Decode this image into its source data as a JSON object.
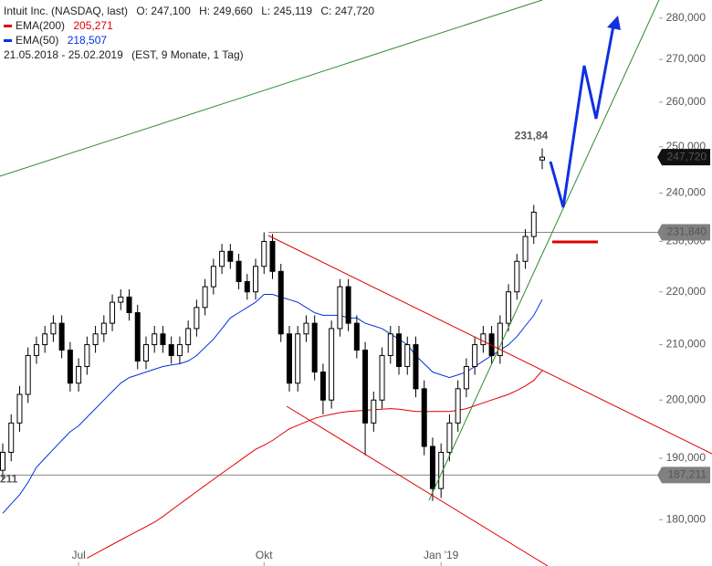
{
  "chart_data": {
    "type": "candlestick",
    "title": "Intuit Inc. (NASDAQ, last)",
    "ohlc_text": [
      "O: 247,100",
      "H: 249,660",
      "L: 245,119",
      "C: 247,720"
    ],
    "subtitle": "21.05.2018 - 25.02.2019",
    "period_note": "(EST, 9 Monate, 1 Tag)",
    "log_scale": true,
    "categories": [
      null,
      null,
      null,
      null,
      null,
      null,
      null,
      null,
      null,
      "Jul",
      null,
      null,
      null,
      null,
      null,
      null,
      null,
      null,
      null,
      null,
      null,
      null,
      null,
      null,
      null,
      null,
      null,
      null,
      null,
      null,
      null,
      "Okt",
      null,
      null,
      null,
      null,
      null,
      null,
      null,
      null,
      null,
      null,
      null,
      null,
      null,
      null,
      null,
      null,
      null,
      null,
      null,
      null,
      "Jan '19",
      null,
      null,
      null,
      null,
      null,
      null,
      null,
      null,
      null,
      null,
      null,
      null
    ],
    "open": [
      188000,
      191000,
      196000,
      201000,
      208000,
      210000,
      212000,
      214000,
      209000,
      203000,
      206000,
      210000,
      212000,
      214000,
      218000,
      219000,
      216000,
      207000,
      210000,
      212000,
      210000,
      208000,
      210000,
      213000,
      217000,
      221000,
      225000,
      228000,
      226000,
      222000,
      220000,
      225000,
      230000,
      224000,
      212000,
      203000,
      212000,
      214000,
      205000,
      200000,
      213000,
      221000,
      214000,
      209000,
      196000,
      200000,
      208000,
      212000,
      206000,
      210000,
      202000,
      192000,
      185000,
      191000,
      196000,
      202000,
      206000,
      210000,
      212000,
      208000,
      214000,
      220000,
      226000,
      231000,
      247100
    ],
    "high": [
      192500,
      197500,
      202500,
      209500,
      211500,
      213500,
      215500,
      215500,
      210500,
      207500,
      211500,
      213500,
      215500,
      219500,
      220500,
      220500,
      217500,
      211500,
      213500,
      213500,
      211500,
      211500,
      214500,
      218500,
      222500,
      226500,
      229500,
      229500,
      227500,
      223500,
      226500,
      231840,
      231500,
      225500,
      213500,
      213500,
      215500,
      215500,
      206500,
      214500,
      222500,
      222500,
      215500,
      210500,
      201500,
      209500,
      213500,
      213500,
      211500,
      211500,
      203500,
      193500,
      192500,
      197500,
      203500,
      207500,
      211500,
      213500,
      213500,
      215500,
      221500,
      227500,
      232500,
      237500,
      249660
    ],
    "low": [
      186500,
      189500,
      194500,
      199500,
      206500,
      208500,
      210500,
      207500,
      201500,
      201500,
      204500,
      208500,
      210500,
      212500,
      216500,
      214500,
      205500,
      205500,
      208500,
      208500,
      206500,
      206500,
      208500,
      211500,
      215500,
      219500,
      223500,
      224500,
      220500,
      218500,
      218500,
      223500,
      222500,
      210500,
      201500,
      201500,
      210500,
      203500,
      197500,
      198500,
      211500,
      212500,
      207500,
      190500,
      194500,
      198500,
      206500,
      204500,
      204500,
      200500,
      190500,
      183000,
      183500,
      189500,
      194500,
      200500,
      204500,
      208500,
      206500,
      206500,
      212500,
      218500,
      224500,
      229500,
      245119
    ],
    "close": [
      191000,
      196000,
      201000,
      208000,
      210000,
      212000,
      214000,
      209000,
      203000,
      206000,
      210000,
      212000,
      214000,
      218000,
      219000,
      216000,
      207000,
      210000,
      212000,
      210000,
      208000,
      210000,
      213000,
      217000,
      221000,
      225000,
      228000,
      226000,
      222000,
      220000,
      225000,
      230000,
      224000,
      212000,
      203000,
      212000,
      214000,
      205000,
      200000,
      213000,
      221000,
      214000,
      209000,
      196000,
      200000,
      208000,
      212000,
      206000,
      210000,
      202000,
      192000,
      185000,
      191000,
      196000,
      202000,
      206000,
      210000,
      212000,
      208000,
      214000,
      220000,
      226000,
      231000,
      236000,
      247720
    ],
    "series": [
      {
        "name": "EMA(200)",
        "value_label": "205,271",
        "color": "#e00000",
        "values": [
          null,
          null,
          null,
          null,
          null,
          null,
          null,
          null,
          null,
          null,
          174000,
          174700,
          175400,
          176100,
          176800,
          177500,
          178200,
          178900,
          179600,
          180500,
          181500,
          182500,
          183500,
          184500,
          185500,
          186500,
          187500,
          188500,
          189500,
          190500,
          191500,
          192200,
          193000,
          194000,
          195000,
          195600,
          196200,
          196800,
          197200,
          197500,
          197800,
          198000,
          198100,
          198200,
          198300,
          198400,
          198500,
          198400,
          198200,
          198000,
          198000,
          198000,
          198000,
          198000,
          198200,
          198500,
          199000,
          199500,
          200000,
          200500,
          201000,
          201700,
          202500,
          203500,
          205271
        ]
      },
      {
        "name": "EMA(50)",
        "value_label": "218,507",
        "color": "#0033dd",
        "values": [
          181000,
          182500,
          184000,
          186000,
          188500,
          190000,
          191500,
          193000,
          194500,
          195500,
          197000,
          198500,
          200000,
          201500,
          203000,
          204000,
          204500,
          205000,
          205500,
          206000,
          206300,
          206500,
          207000,
          208000,
          209500,
          211000,
          213000,
          215000,
          216000,
          217000,
          218000,
          219500,
          219500,
          219000,
          218500,
          218000,
          217000,
          216000,
          215500,
          215500,
          215500,
          215000,
          215000,
          214000,
          213500,
          213000,
          212000,
          211000,
          210000,
          208000,
          206500,
          205000,
          204500,
          204000,
          204500,
          205000,
          206000,
          207000,
          208000,
          209000,
          210000,
          211500,
          213500,
          215500,
          218507
        ]
      }
    ],
    "ylim": [
      172800,
      284500
    ],
    "yticks": [
      {
        "value": 180000,
        "label": "180,000"
      },
      {
        "value": 190000,
        "label": "190,000"
      },
      {
        "value": 200000,
        "label": "200,000"
      },
      {
        "value": 210000,
        "label": "210,000"
      },
      {
        "value": 220000,
        "label": "220,000"
      },
      {
        "value": 230000,
        "label": "230,000"
      },
      {
        "value": 240000,
        "label": "240,000"
      },
      {
        "value": 250000,
        "label": "250,000"
      },
      {
        "value": 260000,
        "label": "260,000"
      },
      {
        "value": 270000,
        "label": "270,000"
      },
      {
        "value": 280000,
        "label": "280,000"
      }
    ],
    "last_price": {
      "value": 247720,
      "label": "247,720"
    },
    "levels": [
      {
        "value": 231840,
        "label": "231,840"
      },
      {
        "value": 187211,
        "label": "187,211"
      }
    ],
    "annotations": [
      "231,84",
      "211"
    ]
  }
}
